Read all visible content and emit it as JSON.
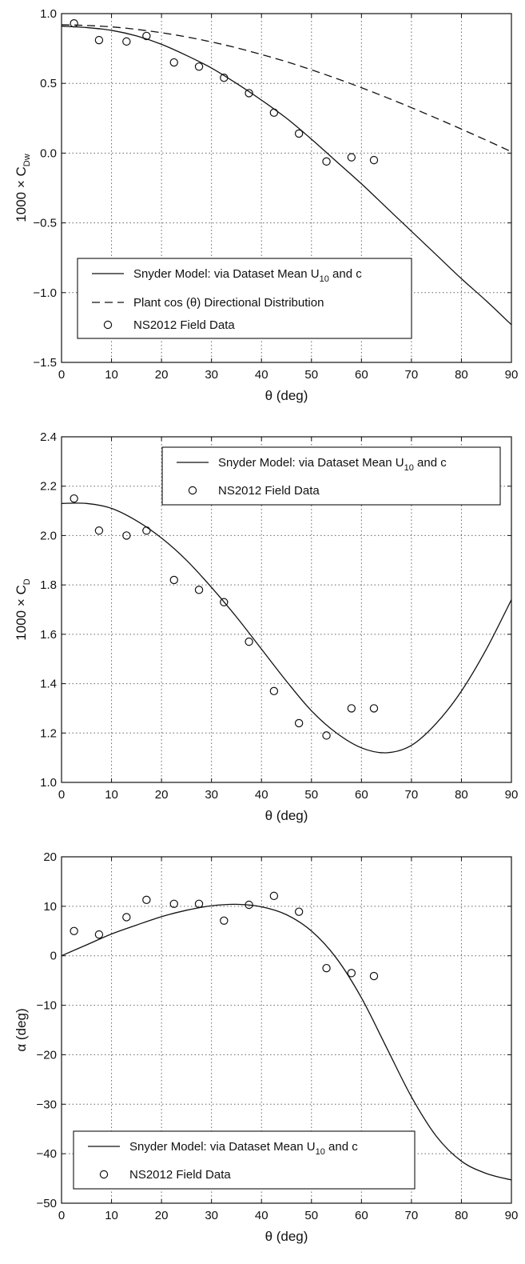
{
  "chart_data": [
    {
      "type": "line",
      "xlabel": "θ (deg)",
      "ylabel": {
        "main": "1000 × C",
        "sub": "Dw"
      },
      "xlim": [
        0,
        90
      ],
      "ylim": [
        -1.5,
        1.0
      ],
      "xticks": [
        0,
        10,
        20,
        30,
        40,
        50,
        60,
        70,
        80,
        90
      ],
      "yticks": [
        -1.5,
        -1.0,
        -0.5,
        0.0,
        0.5,
        1.0
      ],
      "ytick_labels": [
        "−1.5",
        "−1.0",
        "−0.5",
        "0.0",
        "0.5",
        "1.0"
      ],
      "grid": true,
      "legend_position": "lower-left",
      "series": [
        {
          "name": "Snyder Model: via Dataset Mean U",
          "name_sub": "10",
          "name_tail": " and c",
          "style": "solid",
          "x": [
            0,
            5,
            10,
            15,
            20,
            25,
            30,
            35,
            40,
            45,
            50,
            55,
            60,
            65,
            70,
            75,
            80,
            85,
            90
          ],
          "y": [
            0.91,
            0.9,
            0.88,
            0.84,
            0.78,
            0.7,
            0.61,
            0.5,
            0.38,
            0.25,
            0.1,
            -0.06,
            -0.22,
            -0.39,
            -0.56,
            -0.73,
            -0.9,
            -1.06,
            -1.23
          ]
        },
        {
          "name": "Plant cos (θ) Directional Distribution",
          "style": "dashed",
          "x": [
            0,
            5,
            10,
            15,
            20,
            25,
            30,
            35,
            40,
            45,
            50,
            55,
            60,
            65,
            70,
            75,
            80,
            85,
            90
          ],
          "y": [
            0.92,
            0.915,
            0.905,
            0.887,
            0.863,
            0.833,
            0.797,
            0.755,
            0.707,
            0.655,
            0.597,
            0.535,
            0.469,
            0.399,
            0.326,
            0.25,
            0.172,
            0.092,
            0.01
          ]
        },
        {
          "name": "NS2012 Field Data",
          "style": "markers",
          "x": [
            2.5,
            7.5,
            13,
            17,
            22.5,
            27.5,
            32.5,
            37.5,
            42.5,
            47.5,
            53,
            58,
            62.5
          ],
          "y": [
            0.93,
            0.81,
            0.8,
            0.84,
            0.65,
            0.62,
            0.54,
            0.43,
            0.29,
            0.14,
            -0.06,
            -0.03,
            -0.05
          ]
        }
      ]
    },
    {
      "type": "line",
      "xlabel": "θ (deg)",
      "ylabel": {
        "main": "1000 × C",
        "sub": "D"
      },
      "xlim": [
        0,
        90
      ],
      "ylim": [
        1.0,
        2.4
      ],
      "xticks": [
        0,
        10,
        20,
        30,
        40,
        50,
        60,
        70,
        80,
        90
      ],
      "yticks": [
        1.0,
        1.2,
        1.4,
        1.6,
        1.8,
        2.0,
        2.2,
        2.4
      ],
      "ytick_labels": [
        "1.0",
        "1.2",
        "1.4",
        "1.6",
        "1.8",
        "2.0",
        "2.2",
        "2.4"
      ],
      "grid": true,
      "legend_position": "top-right",
      "series": [
        {
          "name": "Snyder Model: via Dataset Mean U",
          "name_sub": "10",
          "name_tail": " and c",
          "style": "solid",
          "x": [
            0,
            5,
            10,
            15,
            20,
            25,
            30,
            35,
            40,
            45,
            50,
            55,
            60,
            65,
            70,
            75,
            80,
            85,
            90
          ],
          "y": [
            2.13,
            2.13,
            2.11,
            2.06,
            1.99,
            1.9,
            1.79,
            1.67,
            1.54,
            1.41,
            1.29,
            1.2,
            1.14,
            1.12,
            1.15,
            1.24,
            1.37,
            1.54,
            1.74
          ]
        },
        {
          "name": "NS2012 Field Data",
          "style": "markers",
          "x": [
            2.5,
            7.5,
            13,
            17,
            22.5,
            27.5,
            32.5,
            37.5,
            42.5,
            47.5,
            53,
            58,
            62.5
          ],
          "y": [
            2.15,
            2.02,
            2.0,
            2.02,
            1.82,
            1.78,
            1.73,
            1.57,
            1.37,
            1.24,
            1.19,
            1.3,
            1.3
          ]
        }
      ]
    },
    {
      "type": "line",
      "xlabel": "θ (deg)",
      "ylabel": {
        "main": "α (deg)",
        "sub": ""
      },
      "xlim": [
        0,
        90
      ],
      "ylim": [
        -50,
        20
      ],
      "xticks": [
        0,
        10,
        20,
        30,
        40,
        50,
        60,
        70,
        80,
        90
      ],
      "yticks": [
        -50,
        -40,
        -30,
        -20,
        -10,
        0,
        10,
        20
      ],
      "ytick_labels": [
        "−50",
        "−40",
        "−30",
        "−20",
        "−10",
        "0",
        "10",
        "20"
      ],
      "grid": true,
      "legend_position": "lower-left",
      "series": [
        {
          "name": "Snyder Model: via Dataset Mean U",
          "name_sub": "10",
          "name_tail": " and c",
          "style": "solid",
          "x": [
            0,
            5,
            10,
            15,
            20,
            25,
            30,
            35,
            40,
            45,
            50,
            55,
            60,
            65,
            70,
            75,
            80,
            85,
            90
          ],
          "y": [
            0,
            2.2,
            4.4,
            6.2,
            7.9,
            9.2,
            10.1,
            10.4,
            9.9,
            8.3,
            5.0,
            -0.5,
            -8.5,
            -18.5,
            -28.5,
            -36.5,
            -41.5,
            -44.0,
            -45.3
          ]
        },
        {
          "name": "NS2012 Field Data",
          "style": "markers",
          "x": [
            2.5,
            7.5,
            13,
            17,
            22.5,
            27.5,
            32.5,
            37.5,
            42.5,
            47.5,
            53,
            58,
            62.5
          ],
          "y": [
            5.0,
            4.3,
            7.8,
            11.3,
            10.5,
            10.5,
            7.1,
            10.3,
            12.1,
            8.9,
            -2.5,
            -3.5,
            -4.1
          ]
        }
      ]
    }
  ]
}
